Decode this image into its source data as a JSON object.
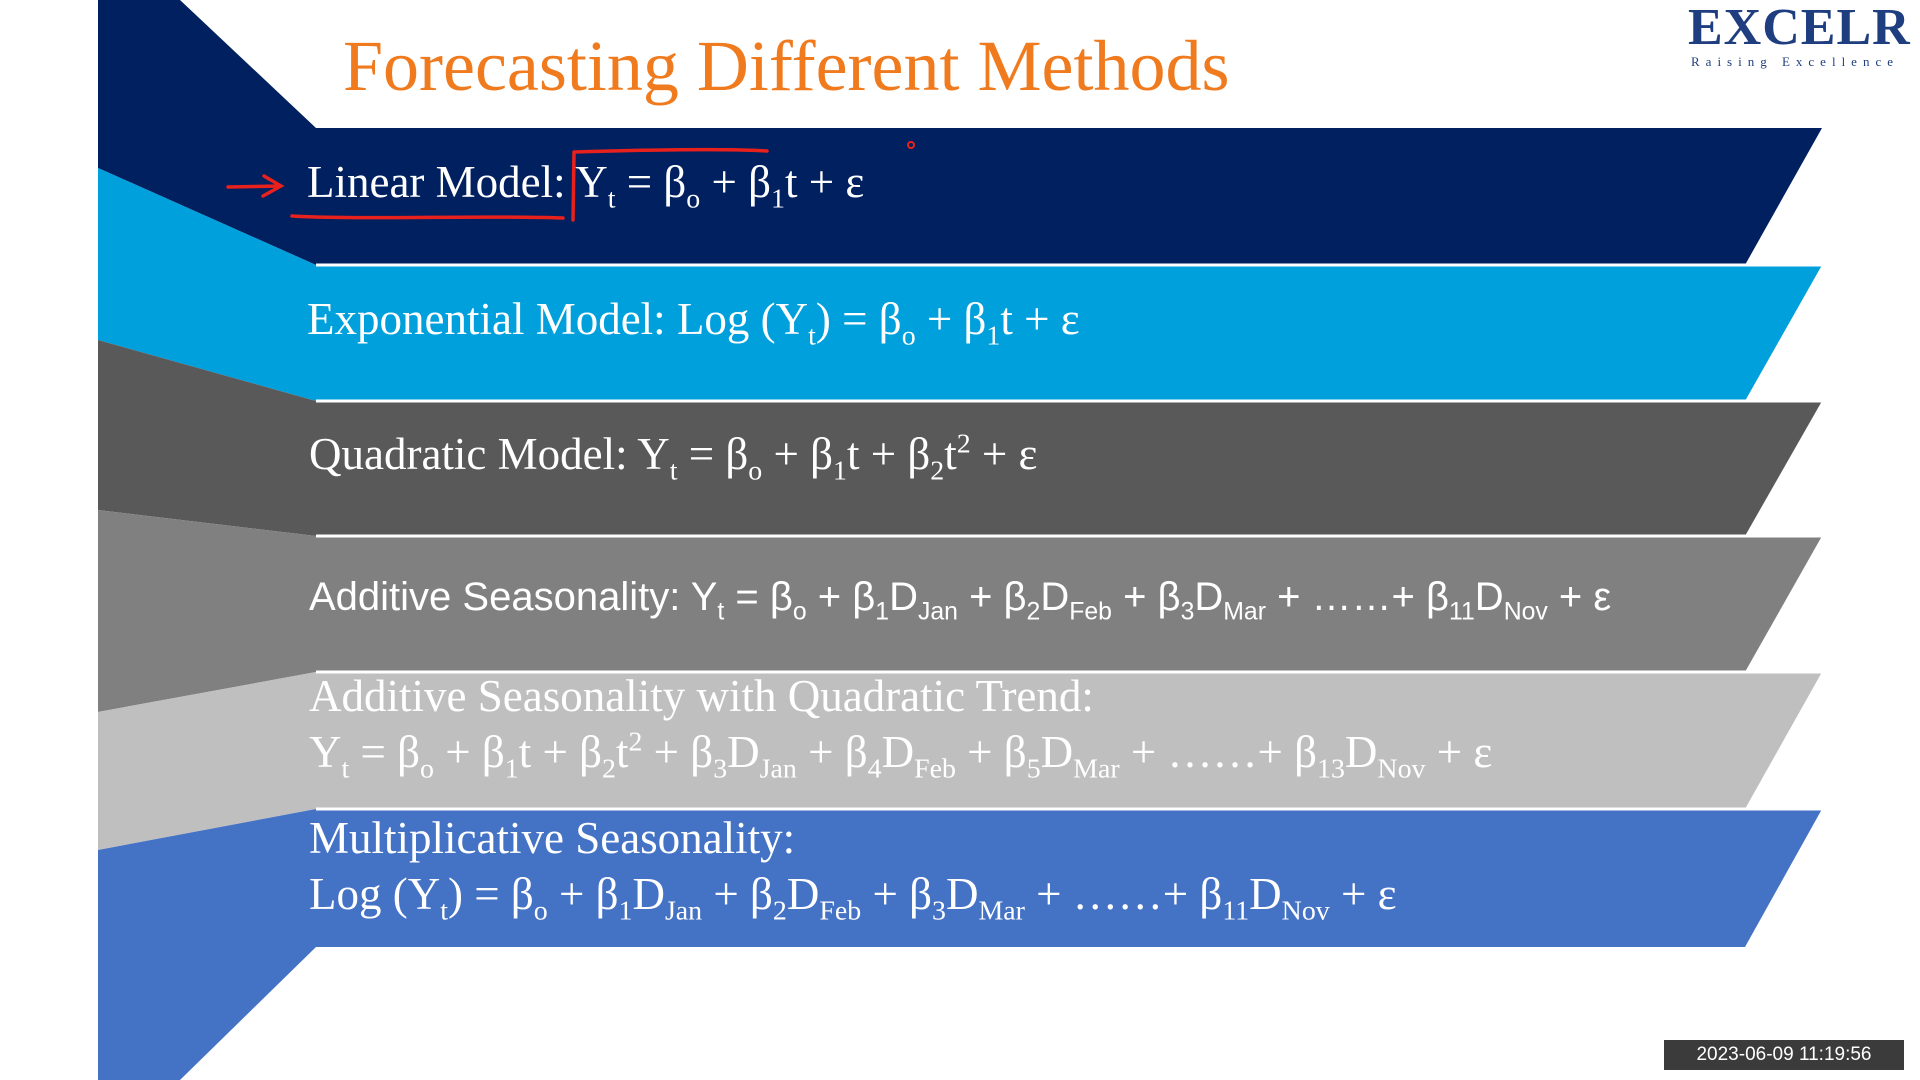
{
  "slide": {
    "title": "Forecasting Different Methods",
    "logo": {
      "name": "EXCELR",
      "tagline": "Raising Excellence"
    },
    "colors": {
      "title": "#F07B1F",
      "logo": "#1F3E80",
      "band_1": "#002060",
      "band_2": "#00A0DC",
      "band_3": "#595959",
      "band_4": "#808080",
      "band_5": "#BFBFBF",
      "band_6": "#4472C4",
      "annotation_pen": "#E8211D"
    },
    "models": [
      {
        "label": "Linear Model:",
        "eq_a": "Y",
        "eq_a_sub": "t",
        "eq_b": " = β",
        "eq_b_sub": "o",
        "eq_c": " + β",
        "eq_c_sub": "1",
        "eq_d": "t + ε"
      },
      {
        "label": "Exponential Model:",
        "eq_a": " Log (Y",
        "eq_a_sub": "t",
        "eq_b": ") = β",
        "eq_b_sub": "o",
        "eq_c": " + β",
        "eq_c_sub": "1",
        "eq_d": "t + ε"
      },
      {
        "label": "Quadratic Model:",
        "eq_a": " Y",
        "eq_a_sub": "t",
        "eq_b": " = β",
        "eq_b_sub": "o",
        "eq_c": " + β",
        "eq_c_sub": "1",
        "eq_d": "t + β",
        "eq_d_sub": "2",
        "eq_e": "t",
        "eq_e_sup": "2",
        "eq_f": " + ε"
      },
      {
        "label": "Additive Seasonality:",
        "eq_a": " Y",
        "eq_a_sub": "t",
        "eq_b": " = β",
        "eq_b_sub": "o",
        "eq_c": " + β",
        "eq_c_sub": "1",
        "eq_d": "D",
        "eq_d_sub": "Jan",
        "eq_e": " + β",
        "eq_e_sub": "2",
        "eq_f": "D",
        "eq_f_sub": "Feb",
        "eq_g": " + β",
        "eq_g_sub": "3",
        "eq_h": "D",
        "eq_h_sub": "Mar",
        "eq_i": " + ……+ β",
        "eq_i_sub": "11",
        "eq_j": "D",
        "eq_j_sub": "Nov",
        "eq_k": " + ε"
      },
      {
        "label": "Additive Seasonality with Quadratic Trend:",
        "eq_a": "Y",
        "eq_a_sub": "t",
        "eq_b": " = β",
        "eq_b_sub": "o",
        "eq_c": " + β",
        "eq_c_sub": "1",
        "eq_d": "t + β",
        "eq_d_sub": "2",
        "eq_e": "t",
        "eq_e_sup": "2",
        "eq_f": " + β",
        "eq_f_sub": "3",
        "eq_g": "D",
        "eq_g_sub": "Jan",
        "eq_h": " + β",
        "eq_h_sub": "4",
        "eq_i": "D",
        "eq_i_sub": "Feb",
        "eq_j": " + β",
        "eq_j_sub": "5",
        "eq_k": "D",
        "eq_k_sub": "Mar",
        "eq_l": " + ……+ β",
        "eq_l_sub": "13",
        "eq_m": "D",
        "eq_m_sub": "Nov",
        "eq_n": " + ε"
      },
      {
        "label": "Multiplicative Seasonality:",
        "eq_a": "Log (Y",
        "eq_a_sub": "t",
        "eq_b": ") = β",
        "eq_b_sub": "o",
        "eq_c": " + β",
        "eq_c_sub": "1",
        "eq_d": "D",
        "eq_d_sub": "Jan",
        "eq_e": " + β",
        "eq_e_sub": "2",
        "eq_f": "D",
        "eq_f_sub": "Feb",
        "eq_g": " + β",
        "eq_g_sub": "3",
        "eq_h": "D",
        "eq_h_sub": "Mar",
        "eq_i": " + ……+ β",
        "eq_i_sub": "11",
        "eq_j": "D",
        "eq_j_sub": "Nov",
        "eq_k": " + ε"
      }
    ],
    "timestamp": "2023-06-09 11:19:56"
  }
}
